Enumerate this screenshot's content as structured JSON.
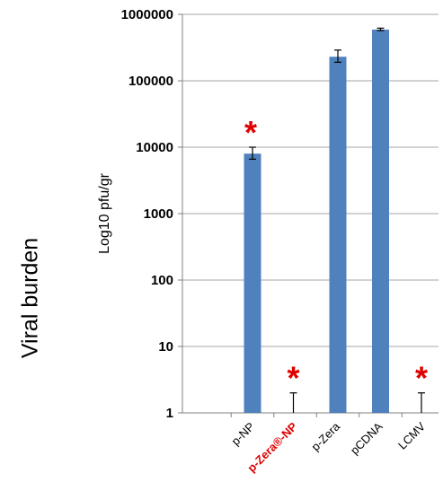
{
  "figure_label": "Viral burden",
  "chart_data": {
    "type": "bar",
    "ylabel": "Log10 pfu/gr",
    "yscale": "log",
    "ylim": [
      1,
      1000000
    ],
    "ytick_labels": [
      "1",
      "10",
      "100",
      "1000",
      "10000",
      "100000",
      "1000000"
    ],
    "yticks": [
      1,
      10,
      100,
      1000,
      10000,
      100000,
      1000000
    ],
    "grid": true,
    "categories": [
      "p-NP",
      "p-Zera®-NP",
      "p-Zera",
      "pCDNA",
      "LCMV"
    ],
    "category_colors": [
      "#000000",
      "#e00000",
      "#000000",
      "#000000",
      "#000000"
    ],
    "values": [
      8000,
      1,
      230000,
      590000,
      1
    ],
    "error_upper": [
      10000,
      2,
      290000,
      620000,
      2
    ],
    "error_lower": [
      6600,
      1,
      190000,
      570000,
      1
    ],
    "significance_marker": "*",
    "significant": [
      true,
      true,
      false,
      false,
      true
    ],
    "bar_color": "#4f81bd",
    "marker_color": "#e00000"
  }
}
